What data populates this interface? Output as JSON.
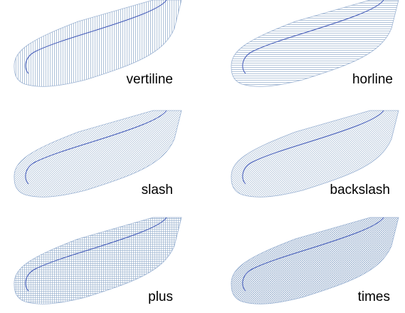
{
  "colors": {
    "hatch": "#8fa9c9",
    "outline": "#9db4d4",
    "centerline": "#3f57b8",
    "label": "#000000",
    "background": "#ffffff"
  },
  "panels": [
    {
      "label": "vertiline",
      "pattern": "vertical-lines"
    },
    {
      "label": "horline",
      "pattern": "horizontal-lines"
    },
    {
      "label": "slash",
      "pattern": "forward-diagonal-lines"
    },
    {
      "label": "backslash",
      "pattern": "backward-diagonal-lines"
    },
    {
      "label": "plus",
      "pattern": "grid-cross"
    },
    {
      "label": "times",
      "pattern": "diagonal-cross"
    }
  ]
}
